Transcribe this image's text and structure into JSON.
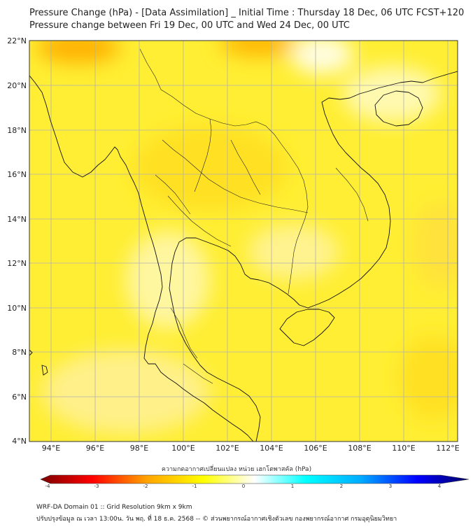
{
  "header": {
    "title_line1": "Pressure Change (hPa) - [Data Assimilation] _ Initial Time : Thursday 18 Dec, 06 UTC FCST+120",
    "title_line2": "Pressure change between Fri 19 Dec, 00 UTC and Wed 24 Dec, 00 UTC"
  },
  "map": {
    "lat_labels": [
      "22°N",
      "20°N",
      "18°N",
      "16°N",
      "14°N",
      "12°N",
      "10°N",
      "8°N",
      "6°N",
      "4°N"
    ],
    "lon_labels": [
      "94°E",
      "96°E",
      "98°E",
      "100°E",
      "102°E",
      "104°E",
      "106°E",
      "108°E",
      "110°E",
      "112°E"
    ],
    "field_color": "#ffee33",
    "coast_color": "#111111",
    "grid_color": "#b0b0b0"
  },
  "colorbar": {
    "title": "ความกดอากาศเปลี่ยนแปลง หน่วย เฮกโตพาสคัล (hPa)",
    "ticks": [
      "-4",
      "-3",
      "-2",
      "-1",
      "0",
      "1",
      "2",
      "3",
      "4"
    ],
    "min": -4,
    "max": 4,
    "colors": [
      "#7a0000",
      "#ff0000",
      "#ffa500",
      "#ffff00",
      "#ffffff",
      "#00ffff",
      "#00aaff",
      "#0000ff",
      "#000060"
    ]
  },
  "footer": {
    "line1": "WRF-DA Domain 01 :: Grid Resolution 9km x 9km",
    "line2": "ปรับปรุงข้อมูล ณ เวลา 13:00น. วัน พฤ. ที่ 18 ธ.ค. 2568 -- © ส่วนพยากรณ์อากาศเชิงตัวเลข กองพยากรณ์อากาศ กรมอุตุนิยมวิทยา"
  }
}
